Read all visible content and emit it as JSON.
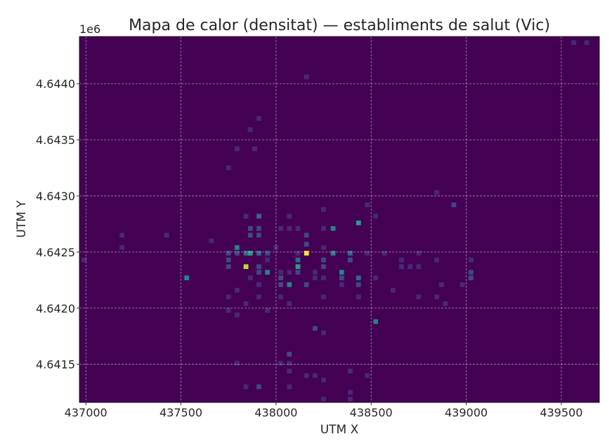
{
  "chart_data": {
    "type": "heatmap",
    "title": "Mapa de calor (densitat) — establiments de salut (Vic)",
    "xlabel": "UTM X",
    "ylabel": "UTM Y",
    "y_offset_label": "1e6",
    "xlim": [
      436966,
      439700
    ],
    "ylim": [
      4641160,
      4644420
    ],
    "x_ticks": [
      437000,
      437500,
      438000,
      438500,
      439000,
      439500
    ],
    "x_tick_labels": [
      "437000",
      "437500",
      "438000",
      "438500",
      "439000",
      "439500"
    ],
    "y_ticks": [
      4641500,
      4642000,
      4642500,
      4643000,
      4643500,
      4644000
    ],
    "y_tick_labels": [
      "4.6415",
      "4.6420",
      "4.6425",
      "4.6430",
      "4.6435",
      "4.6440"
    ],
    "grid": true,
    "colormap": "viridis",
    "background_color": "#440154",
    "bin_width": 45.6,
    "bin_height": 76,
    "value_range": [
      0,
      9
    ],
    "cells": [
      [
        439566,
        4644366,
        1
      ],
      [
        439634,
        4644366,
        1
      ],
      [
        438160,
        4644060,
        1
      ],
      [
        437910,
        4643690,
        1
      ],
      [
        437864,
        4643590,
        1
      ],
      [
        437795,
        4643420,
        1
      ],
      [
        437888,
        4643420,
        1
      ],
      [
        437750,
        4643250,
        1
      ],
      [
        438845,
        4643030,
        1
      ],
      [
        438935,
        4642920,
        2
      ],
      [
        438480,
        4642920,
        1
      ],
      [
        438250,
        4642880,
        1
      ],
      [
        438524,
        4642820,
        1
      ],
      [
        437842,
        4642820,
        1
      ],
      [
        437910,
        4642820,
        3
      ],
      [
        438070,
        4642820,
        1
      ],
      [
        438434,
        4642760,
        5
      ],
      [
        437865,
        4642710,
        2
      ],
      [
        437910,
        4642710,
        2
      ],
      [
        438025,
        4642710,
        1
      ],
      [
        438070,
        4642710,
        1
      ],
      [
        438115,
        4642710,
        1
      ],
      [
        438250,
        4642710,
        1
      ],
      [
        438300,
        4642710,
        4
      ],
      [
        437190,
        4642650,
        1
      ],
      [
        437425,
        4642650,
        1
      ],
      [
        437865,
        4642650,
        2
      ],
      [
        437910,
        4642650,
        2
      ],
      [
        438160,
        4642650,
        2
      ],
      [
        437660,
        4642600,
        1
      ],
      [
        438160,
        4642570,
        2
      ],
      [
        437190,
        4642540,
        1
      ],
      [
        437795,
        4642540,
        4
      ],
      [
        438000,
        4642540,
        1
      ],
      [
        438250,
        4642540,
        1
      ],
      [
        436990,
        4642430,
        1
      ],
      [
        437750,
        4642490,
        2
      ],
      [
        437795,
        4642490,
        2
      ],
      [
        437842,
        4642490,
        3
      ],
      [
        437865,
        4642490,
        5
      ],
      [
        437910,
        4642490,
        3
      ],
      [
        437955,
        4642490,
        2
      ],
      [
        438115,
        4642490,
        1
      ],
      [
        438160,
        4642490,
        9
      ],
      [
        438300,
        4642490,
        4
      ],
      [
        438390,
        4642490,
        3
      ],
      [
        438480,
        4642490,
        1
      ],
      [
        438570,
        4642490,
        1
      ],
      [
        438750,
        4642490,
        1
      ],
      [
        438845,
        4642430,
        1
      ],
      [
        439025,
        4642430,
        1
      ],
      [
        437750,
        4642430,
        2
      ],
      [
        437955,
        4642430,
        1
      ],
      [
        438115,
        4642430,
        3
      ],
      [
        438250,
        4642430,
        2
      ],
      [
        438390,
        4642430,
        2
      ],
      [
        438660,
        4642430,
        1
      ],
      [
        437750,
        4642370,
        2
      ],
      [
        437842,
        4642370,
        8
      ],
      [
        437910,
        4642370,
        2
      ],
      [
        438115,
        4642370,
        5
      ],
      [
        438250,
        4642370,
        2
      ],
      [
        438660,
        4642370,
        1
      ],
      [
        438705,
        4642370,
        1
      ],
      [
        438750,
        4642370,
        1
      ],
      [
        437910,
        4642320,
        2
      ],
      [
        437955,
        4642320,
        4
      ],
      [
        438025,
        4642320,
        1
      ],
      [
        438070,
        4642320,
        1
      ],
      [
        438115,
        4642320,
        2
      ],
      [
        438205,
        4642320,
        1
      ],
      [
        438345,
        4642320,
        4
      ],
      [
        439025,
        4642320,
        2
      ],
      [
        437530,
        4642270,
        4
      ],
      [
        437865,
        4642270,
        1
      ],
      [
        438025,
        4642270,
        2
      ],
      [
        438205,
        4642270,
        1
      ],
      [
        438250,
        4642270,
        1
      ],
      [
        438345,
        4642270,
        2
      ],
      [
        438434,
        4642270,
        3
      ],
      [
        438524,
        4642270,
        1
      ],
      [
        439025,
        4642270,
        2
      ],
      [
        437910,
        4642210,
        1
      ],
      [
        438025,
        4642210,
        2
      ],
      [
        438070,
        4642210,
        4
      ],
      [
        438160,
        4642210,
        2
      ],
      [
        438345,
        4642210,
        1
      ],
      [
        438434,
        4642210,
        2
      ],
      [
        438870,
        4642210,
        1
      ],
      [
        438980,
        4642210,
        1
      ],
      [
        437795,
        4642160,
        1
      ],
      [
        438615,
        4642160,
        1
      ],
      [
        437750,
        4642100,
        1
      ],
      [
        437910,
        4642100,
        1
      ],
      [
        438025,
        4642100,
        1
      ],
      [
        438250,
        4642100,
        1
      ],
      [
        438434,
        4642100,
        1
      ],
      [
        438750,
        4642100,
        1
      ],
      [
        438845,
        4642100,
        1
      ],
      [
        437842,
        4642040,
        1
      ],
      [
        438070,
        4642040,
        1
      ],
      [
        438890,
        4642040,
        1
      ],
      [
        437750,
        4641980,
        1
      ],
      [
        437955,
        4641980,
        1
      ],
      [
        437795,
        4641940,
        1
      ],
      [
        438524,
        4641880,
        4
      ],
      [
        438205,
        4641820,
        2
      ],
      [
        438250,
        4641780,
        1
      ],
      [
        438070,
        4641590,
        2
      ],
      [
        437795,
        4641510,
        1
      ],
      [
        438025,
        4641510,
        1
      ],
      [
        438070,
        4641510,
        1
      ],
      [
        438070,
        4641440,
        1
      ],
      [
        438390,
        4641440,
        1
      ],
      [
        438160,
        4641400,
        1
      ],
      [
        438205,
        4641400,
        1
      ],
      [
        438480,
        4641400,
        1
      ],
      [
        438250,
        4641360,
        1
      ],
      [
        437842,
        4641300,
        1
      ],
      [
        437910,
        4641300,
        2
      ],
      [
        438070,
        4641300,
        1
      ],
      [
        438390,
        4641250,
        1
      ],
      [
        438250,
        4641190,
        1
      ],
      [
        438390,
        4641190,
        1
      ]
    ]
  }
}
